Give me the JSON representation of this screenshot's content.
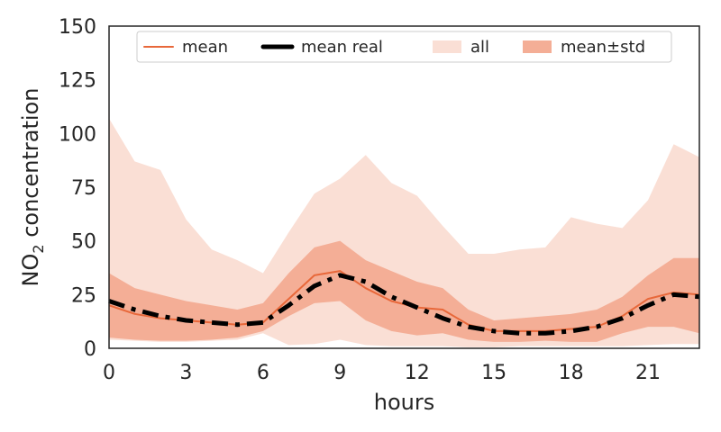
{
  "chart_data": {
    "type": "area",
    "xlabel": "hours",
    "ylabel_main": "NO",
    "ylabel_sub": "2",
    "ylabel_rest": " concentration",
    "xlim": [
      0,
      23
    ],
    "ylim": [
      0,
      150
    ],
    "xticks": [
      0,
      3,
      6,
      9,
      12,
      15,
      18,
      21
    ],
    "yticks": [
      0,
      25,
      50,
      75,
      100,
      125,
      150
    ],
    "grid": false,
    "legend_position": "top",
    "x": [
      0,
      1,
      2,
      3,
      4,
      5,
      6,
      7,
      8,
      9,
      10,
      11,
      12,
      13,
      14,
      15,
      16,
      17,
      18,
      19,
      20,
      21,
      22,
      23
    ],
    "series": [
      {
        "name": "all",
        "kind": "band",
        "color": "#fadfd5",
        "lower": [
          4,
          3.5,
          3,
          3,
          3.5,
          4,
          7,
          1.5,
          2,
          4,
          1.5,
          1,
          1,
          1,
          0.5,
          0.5,
          1,
          1,
          1,
          1,
          1,
          1.5,
          2,
          2
        ],
        "upper": [
          107,
          87,
          83,
          60,
          46,
          41,
          35,
          54,
          72,
          79,
          90,
          77,
          71,
          57,
          44,
          44,
          46,
          47,
          61,
          58,
          56,
          69,
          95,
          89
        ]
      },
      {
        "name": "mean±std",
        "kind": "band",
        "color": "#f4ae96",
        "lower": [
          5,
          4,
          3.5,
          3.5,
          4,
          5,
          8,
          15,
          21,
          22,
          13,
          8,
          6,
          7,
          4,
          3,
          3,
          3.5,
          3,
          3,
          7,
          10,
          10,
          7
        ],
        "upper": [
          35,
          28,
          25,
          22,
          20,
          18,
          21,
          35,
          47,
          50,
          41,
          36,
          31,
          28,
          18,
          13,
          14,
          15,
          16,
          18,
          24,
          34,
          42,
          42
        ]
      },
      {
        "name": "mean",
        "kind": "line",
        "color": "#e8683a",
        "values": [
          20,
          16,
          14,
          13,
          12,
          11,
          12,
          23,
          34,
          36,
          28,
          22,
          19,
          18,
          11,
          8,
          8,
          8,
          9,
          10,
          15,
          23,
          26,
          25
        ]
      },
      {
        "name": "mean real",
        "kind": "dashed",
        "color": "#000000",
        "values": [
          22,
          18,
          15,
          13,
          12,
          11,
          12,
          20,
          29,
          34,
          31,
          24,
          19,
          14,
          10,
          8,
          7,
          7,
          8,
          10,
          14,
          20,
          25,
          24
        ]
      }
    ],
    "legend": [
      {
        "label": "mean",
        "kind": "line",
        "color": "#e8683a"
      },
      {
        "label": "mean real",
        "kind": "dashed",
        "color": "#000000"
      },
      {
        "label": "all",
        "kind": "band",
        "color": "#fadfd5"
      },
      {
        "label": "mean±std",
        "kind": "band",
        "color": "#f4ae96"
      }
    ]
  }
}
